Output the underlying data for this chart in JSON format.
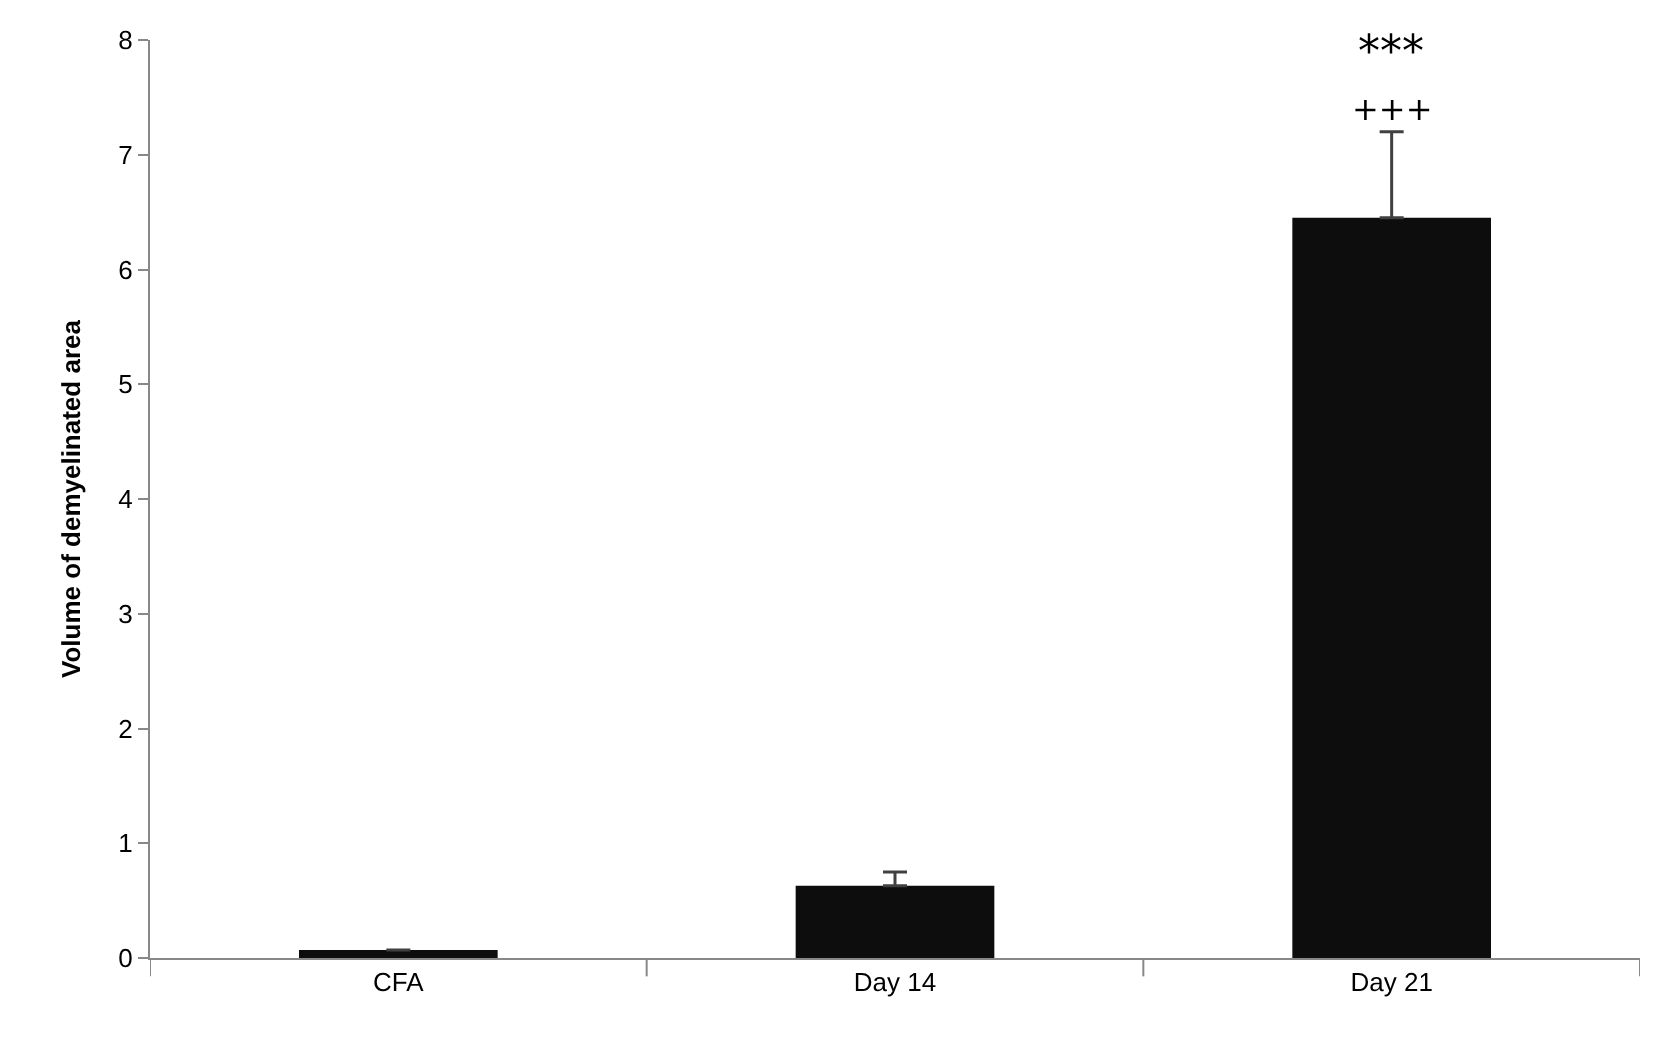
{
  "chart_data": {
    "type": "bar",
    "ylabel": "Volume of demyelinated area",
    "categories": [
      "CFA",
      "Day 14",
      "Day 21"
    ],
    "values": [
      0.07,
      0.63,
      6.45
    ],
    "errors": [
      null,
      [
        0.63,
        0.75
      ],
      [
        6.45,
        7.2
      ]
    ],
    "color": "#0d0d0d",
    "ylim": [
      0,
      8
    ],
    "yticks": [
      0,
      1,
      2,
      3,
      4,
      5,
      6,
      7,
      8
    ],
    "annotations": [
      "***",
      "+++"
    ]
  }
}
